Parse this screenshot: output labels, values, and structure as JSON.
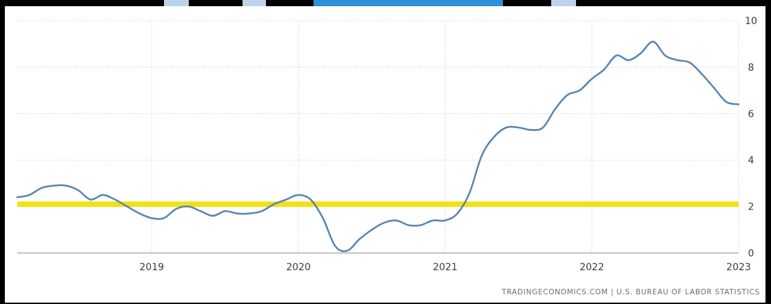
{
  "source_text": "TRADINGECONOMICS.COM  |  U.S. BUREAU OF LABOR STATISTICS",
  "colors": {
    "line": "#5b86ad",
    "reference": "#f0e21a",
    "grid": "#c8c8c8",
    "text": "#3a3a3a",
    "source": "#6b6b6b",
    "watermark": "#2f8fd8"
  },
  "chart_data": {
    "type": "line",
    "title": "",
    "xlabel": "",
    "ylabel": "",
    "ylim": [
      0,
      10
    ],
    "xlim": [
      "2018-02",
      "2023-01"
    ],
    "y_ticks": [
      0,
      2,
      4,
      6,
      8,
      10
    ],
    "x_ticks": [
      "2019",
      "2020",
      "2021",
      "2022",
      "2023"
    ],
    "grid": true,
    "legend": "none",
    "reference_line": {
      "value": 2.1
    },
    "series": [
      {
        "x": [
          "2018-02",
          "2018-03",
          "2018-04",
          "2018-05",
          "2018-06",
          "2018-07",
          "2018-08",
          "2018-09",
          "2018-10",
          "2018-11",
          "2018-12",
          "2019-01",
          "2019-02",
          "2019-03",
          "2019-04",
          "2019-05",
          "2019-06",
          "2019-07",
          "2019-08",
          "2019-09",
          "2019-10",
          "2019-11",
          "2019-12",
          "2020-01",
          "2020-02",
          "2020-03",
          "2020-04",
          "2020-05",
          "2020-06",
          "2020-07",
          "2020-08",
          "2020-09",
          "2020-10",
          "2020-11",
          "2020-12",
          "2021-01",
          "2021-02",
          "2021-03",
          "2021-04",
          "2021-05",
          "2021-06",
          "2021-07",
          "2021-08",
          "2021-09",
          "2021-10",
          "2021-11",
          "2021-12",
          "2022-01",
          "2022-02",
          "2022-03",
          "2022-04",
          "2022-05",
          "2022-06",
          "2022-07",
          "2022-08",
          "2022-09",
          "2022-10",
          "2022-11",
          "2022-12",
          "2023-01"
        ],
        "values": [
          2.4,
          2.5,
          2.8,
          2.9,
          2.9,
          2.7,
          2.3,
          2.5,
          2.3,
          2.0,
          1.7,
          1.5,
          1.5,
          1.9,
          2.0,
          1.8,
          1.6,
          1.8,
          1.7,
          1.7,
          1.8,
          2.1,
          2.3,
          2.5,
          2.3,
          1.5,
          0.3,
          0.1,
          0.6,
          1.0,
          1.3,
          1.4,
          1.2,
          1.2,
          1.4,
          1.4,
          1.7,
          2.6,
          4.2,
          5.0,
          5.4,
          5.4,
          5.3,
          5.4,
          6.2,
          6.8,
          7.0,
          7.5,
          7.9,
          8.5,
          8.3,
          8.6,
          9.1,
          8.5,
          8.3,
          8.2,
          7.7,
          7.1,
          6.5,
          6.4
        ]
      }
    ]
  }
}
